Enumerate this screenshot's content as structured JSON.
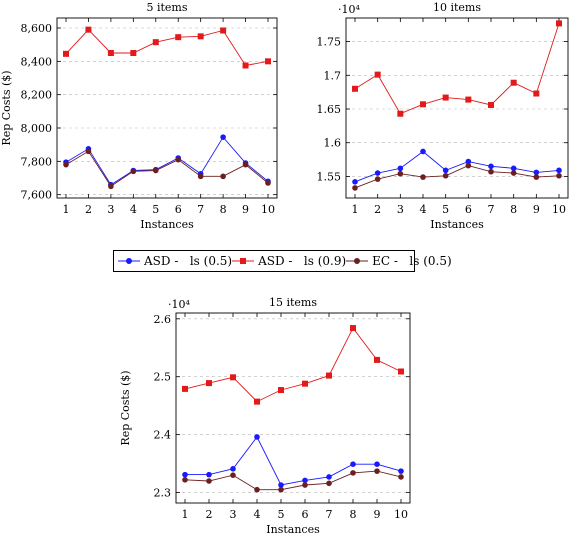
{
  "chart_data": [
    {
      "type": "line",
      "title": "5 items",
      "xlabel": "Instances",
      "ylabel": "Rep Costs ($)",
      "multiplier_label": "",
      "x": [
        1,
        2,
        3,
        4,
        5,
        6,
        7,
        8,
        9,
        10
      ],
      "xticks": [
        "1",
        "2",
        "3",
        "4",
        "5",
        "6",
        "7",
        "8",
        "9",
        "10"
      ],
      "ylim": [
        7580,
        8660
      ],
      "yticks": [
        7600,
        7800,
        8000,
        8200,
        8400,
        8600
      ],
      "ytick_labels": [
        "7,600",
        "7,800",
        "8,000",
        "8,200",
        "8,400",
        "8,600"
      ],
      "grid": "horizontal-dashed",
      "series": [
        {
          "name": "ASD -   ls (0.5)",
          "color": "#1a1aff",
          "marker": "circle",
          "values": [
            7795,
            7875,
            7660,
            7745,
            7750,
            7820,
            7725,
            7945,
            7790,
            7680
          ]
        },
        {
          "name": "ASD -   ls (0.9)",
          "color": "#e31a1c",
          "marker": "square",
          "values": [
            8445,
            8590,
            8450,
            8450,
            8515,
            8545,
            8550,
            8585,
            8375,
            8400
          ]
        },
        {
          "name": "EC -   ls (0.5)",
          "color": "#6b1f1f",
          "marker": "circle",
          "values": [
            7780,
            7860,
            7650,
            7740,
            7745,
            7810,
            7710,
            7710,
            7780,
            7670
          ]
        }
      ]
    },
    {
      "type": "line",
      "title": "10 items",
      "xlabel": "Instances",
      "ylabel": "",
      "multiplier_label": "·10⁴",
      "x": [
        1,
        2,
        3,
        4,
        5,
        6,
        7,
        8,
        9,
        10
      ],
      "xticks": [
        "1",
        "2",
        "3",
        "4",
        "5",
        "6",
        "7",
        "8",
        "9",
        "10"
      ],
      "ylim": [
        1.518,
        1.785
      ],
      "yticks": [
        1.55,
        1.6,
        1.65,
        1.7,
        1.75
      ],
      "ytick_labels": [
        "1.55",
        "1.6",
        "1.65",
        "1.7",
        "1.75"
      ],
      "grid": "horizontal-dashed",
      "series": [
        {
          "name": "ASD -   ls (0.5)",
          "color": "#1a1aff",
          "marker": "circle",
          "values": [
            1.542,
            1.555,
            1.562,
            1.587,
            1.559,
            1.572,
            1.565,
            1.562,
            1.556,
            1.559
          ]
        },
        {
          "name": "ASD -   ls (0.9)",
          "color": "#e31a1c",
          "marker": "square",
          "values": [
            1.68,
            1.701,
            1.643,
            1.657,
            1.667,
            1.664,
            1.656,
            1.689,
            1.673,
            1.777
          ]
        },
        {
          "name": "EC -   ls (0.5)",
          "color": "#6b1f1f",
          "marker": "circle",
          "values": [
            1.533,
            1.546,
            1.554,
            1.549,
            1.551,
            1.566,
            1.557,
            1.555,
            1.549,
            1.551
          ]
        }
      ]
    },
    {
      "type": "line",
      "title": "15 items",
      "xlabel": "Instances",
      "ylabel": "Rep Costs ($)",
      "multiplier_label": "·10⁴",
      "x": [
        1,
        2,
        3,
        4,
        5,
        6,
        7,
        8,
        9,
        10
      ],
      "xticks": [
        "1",
        "2",
        "3",
        "4",
        "5",
        "6",
        "7",
        "8",
        "9",
        "10"
      ],
      "ylim": [
        2.282,
        2.61
      ],
      "yticks": [
        2.3,
        2.4,
        2.5,
        2.6
      ],
      "ytick_labels": [
        "2.3",
        "2.4",
        "2.5",
        "2.6"
      ],
      "grid": "horizontal-dashed",
      "series": [
        {
          "name": "ASD -   ls (0.5)",
          "color": "#1a1aff",
          "marker": "circle",
          "values": [
            2.331,
            2.331,
            2.341,
            2.396,
            2.313,
            2.321,
            2.327,
            2.349,
            2.349,
            2.337
          ]
        },
        {
          "name": "ASD -   ls (0.9)",
          "color": "#e31a1c",
          "marker": "square",
          "values": [
            2.479,
            2.489,
            2.499,
            2.457,
            2.477,
            2.488,
            2.502,
            2.584,
            2.529,
            2.509
          ]
        },
        {
          "name": "EC -   ls (0.5)",
          "color": "#6b1f1f",
          "marker": "circle",
          "values": [
            2.322,
            2.32,
            2.33,
            2.305,
            2.305,
            2.313,
            2.316,
            2.334,
            2.337,
            2.327
          ]
        }
      ]
    }
  ],
  "legend": {
    "placement": "between-rows-center",
    "items": [
      {
        "label": "ASD -   ls (0.5)",
        "color": "#1a1aff",
        "marker": "circle"
      },
      {
        "label": "ASD -   ls (0.9)",
        "color": "#e31a1c",
        "marker": "square"
      },
      {
        "label": "EC -   ls (0.5)",
        "color": "#6b1f1f",
        "marker": "circle"
      }
    ]
  }
}
